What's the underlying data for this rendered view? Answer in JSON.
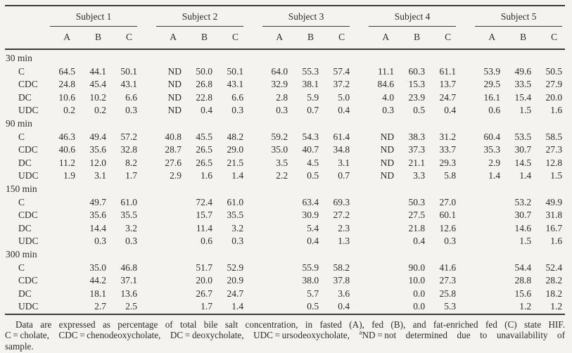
{
  "colors": {
    "background": "#f4f3f0",
    "text": "#2d2c29",
    "rule": "#3b3a36"
  },
  "table": {
    "col_groups": [
      "Subject 1",
      "Subject 2",
      "Subject 3",
      "Subject 4",
      "Subject 5"
    ],
    "sub_cols": [
      "A",
      "B",
      "C"
    ],
    "groups": [
      {
        "label": "30 min",
        "rows": [
          {
            "label": "C",
            "values": [
              "64.5",
              "44.1",
              "50.1",
              "ND",
              "50.0",
              "50.1",
              "64.0",
              "55.3",
              "57.4",
              "11.1",
              "60.3",
              "61.1",
              "53.9",
              "49.6",
              "50.5"
            ]
          },
          {
            "label": "CDC",
            "values": [
              "24.8",
              "45.4",
              "43.1",
              "ND",
              "26.8",
              "43.1",
              "32.9",
              "38.1",
              "37.2",
              "84.6",
              "15.3",
              "13.7",
              "29.5",
              "33.5",
              "27.9"
            ]
          },
          {
            "label": "DC",
            "values": [
              "10.6",
              "10.2",
              "6.6",
              "ND",
              "22.8",
              "6.6",
              "2.8",
              "5.9",
              "5.0",
              "4.0",
              "23.9",
              "24.7",
              "16.1",
              "15.4",
              "20.0"
            ]
          },
          {
            "label": "UDC",
            "values": [
              "0.2",
              "0.2",
              "0.3",
              "ND",
              "0.4",
              "0.3",
              "0.3",
              "0.7",
              "0.4",
              "0.3",
              "0.5",
              "0.4",
              "0.6",
              "1.5",
              "1.6"
            ]
          }
        ]
      },
      {
        "label": "90 min",
        "rows": [
          {
            "label": "C",
            "values": [
              "46.3",
              "49.4",
              "57.2",
              "40.8",
              "45.5",
              "48.2",
              "59.2",
              "54.3",
              "61.4",
              "ND",
              "38.3",
              "31.2",
              "60.4",
              "53.5",
              "58.5"
            ]
          },
          {
            "label": "CDC",
            "values": [
              "40.6",
              "35.6",
              "32.8",
              "28.7",
              "26.5",
              "29.0",
              "35.0",
              "40.7",
              "34.8",
              "ND",
              "37.3",
              "33.7",
              "35.3",
              "30.7",
              "27.3"
            ]
          },
          {
            "label": "DC",
            "values": [
              "11.2",
              "12.0",
              "8.2",
              "27.6",
              "26.5",
              "21.5",
              "3.5",
              "4.5",
              "3.1",
              "ND",
              "21.1",
              "29.3",
              "2.9",
              "14.5",
              "12.8"
            ]
          },
          {
            "label": "UDC",
            "values": [
              "1.9",
              "3.1",
              "1.7",
              "2.9",
              "1.6",
              "1.4",
              "2.2",
              "0.5",
              "0.7",
              "ND",
              "3.3",
              "5.8",
              "1.4",
              "1.4",
              "1.5"
            ]
          }
        ]
      },
      {
        "label": "150 min",
        "rows": [
          {
            "label": "C",
            "values": [
              "",
              "49.7",
              "61.0",
              "",
              "72.4",
              "61.0",
              "",
              "63.4",
              "69.3",
              "",
              "50.3",
              "27.0",
              "",
              "53.2",
              "49.9"
            ]
          },
          {
            "label": "CDC",
            "values": [
              "",
              "35.6",
              "35.5",
              "",
              "15.7",
              "35.5",
              "",
              "30.9",
              "27.2",
              "",
              "27.5",
              "60.1",
              "",
              "30.7",
              "31.8"
            ]
          },
          {
            "label": "DC",
            "values": [
              "",
              "14.4",
              "3.2",
              "",
              "11.4",
              "3.2",
              "",
              "5.4",
              "2.3",
              "",
              "21.8",
              "12.6",
              "",
              "14.6",
              "16.7"
            ]
          },
          {
            "label": "UDC",
            "values": [
              "",
              "0.3",
              "0.3",
              "",
              "0.6",
              "0.3",
              "",
              "0.4",
              "1.3",
              "",
              "0.4",
              "0.3",
              "",
              "1.5",
              "1.6"
            ]
          }
        ]
      },
      {
        "label": "300 min",
        "rows": [
          {
            "label": "C",
            "values": [
              "",
              "35.0",
              "46.8",
              "",
              "51.7",
              "52.9",
              "",
              "55.9",
              "58.2",
              "",
              "90.0",
              "41.6",
              "",
              "54.4",
              "52.4"
            ]
          },
          {
            "label": "CDC",
            "values": [
              "",
              "44.2",
              "37.1",
              "",
              "20.0",
              "20.9",
              "",
              "38.0",
              "37.8",
              "",
              "10.0",
              "27.3",
              "",
              "28.8",
              "28.2"
            ]
          },
          {
            "label": "DC",
            "values": [
              "",
              "18.1",
              "13.6",
              "",
              "26.7",
              "24.7",
              "",
              "5.7",
              "3.6",
              "",
              "0.0",
              "25.8",
              "",
              "15.6",
              "18.2"
            ]
          },
          {
            "label": "UDC",
            "values": [
              "",
              "2.7",
              "2.5",
              "",
              "1.7",
              "1.4",
              "",
              "0.5",
              "0.4",
              "",
              "0.0",
              "5.3",
              "",
              "1.2",
              "1.2"
            ]
          }
        ]
      }
    ]
  },
  "footnote": {
    "line1": "Data are expressed as percentage of total bile salt concentration, in fasted (A), fed (B), and fat-enriched fed (C) state HIF.",
    "line2_pre": "C = cholate, CDC = chenodeoxycholate, DC = deoxycholate, UDC = ursodeoxycholate, ",
    "line2_sup": "a",
    "line2_post": "ND = not determined due to unavailability of",
    "line3": "sample."
  }
}
